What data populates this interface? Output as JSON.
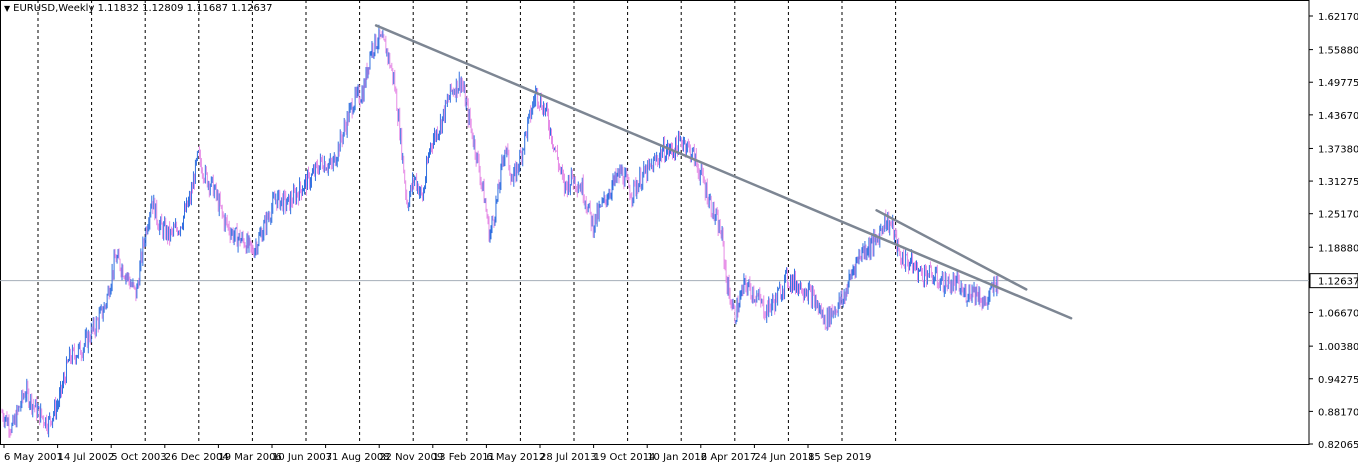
{
  "header": {
    "symbol": "EURUSD,Weekly",
    "ohlc": "1.11832 1.12809 1.11687 1.12637"
  },
  "colors": {
    "background": "#ffffff",
    "up_bar": "#2f6fe0",
    "down_bar": "#e68ce6",
    "trendline": "#7d8693",
    "grid": "#000000",
    "price_line": "#a5aeb8",
    "current_price_badge_bg": "#ffffff"
  },
  "chart_data": {
    "type": "line",
    "title": "",
    "symbol": "EURUSD",
    "timeframe": "Weekly",
    "last_ohlc": {
      "open": 1.11832,
      "high": 1.12809,
      "low": 1.11687,
      "close": 1.12637
    },
    "current_price": 1.12637,
    "current_price_label": "1.12637",
    "ylim": [
      0.821,
      1.627
    ],
    "y_ticks": [
      "1.62170",
      "1.55880",
      "1.49775",
      "1.43670",
      "1.37380",
      "1.31275",
      "1.25170",
      "1.18880",
      "1.12637",
      "1.06670",
      "1.00380",
      "0.94275",
      "0.88170",
      "0.82065"
    ],
    "y_tick_values": [
      1.6217,
      1.5588,
      1.49775,
      1.4367,
      1.3738,
      1.31275,
      1.2517,
      1.1888,
      1.0667,
      1.0038,
      0.94275,
      0.8817,
      0.82065
    ],
    "x_tick_labels": [
      "6 May 2001",
      "14 Jul 2002",
      "5 Oct 2003",
      "26 Dec 2004",
      "19 Mar 2006",
      "10 Jun 2007",
      "31 Aug 2008",
      "22 Nov 2009",
      "13 Feb 2011",
      "6 May 2012",
      "28 Jul 2013",
      "19 Oct 2014",
      "10 Jan 2016",
      "2 Apr 2017",
      "24 Jun 2018",
      "15 Sep 2019"
    ],
    "x_range": [
      2001.0,
      2020.4
    ],
    "series": [
      {
        "values": [
          [
            2001.0,
            0.88
          ],
          [
            2001.2,
            0.85
          ],
          [
            2001.45,
            0.92
          ],
          [
            2001.7,
            0.88
          ],
          [
            2001.9,
            0.86
          ],
          [
            2002.1,
            0.9
          ],
          [
            2002.3,
            0.98
          ],
          [
            2002.55,
            1.0
          ],
          [
            2002.8,
            1.04
          ],
          [
            2003.0,
            1.08
          ],
          [
            2003.2,
            1.17
          ],
          [
            2003.4,
            1.14
          ],
          [
            2003.6,
            1.1
          ],
          [
            2003.75,
            1.2
          ],
          [
            2003.9,
            1.28
          ],
          [
            2004.05,
            1.23
          ],
          [
            2004.25,
            1.21
          ],
          [
            2004.45,
            1.23
          ],
          [
            2004.65,
            1.28
          ],
          [
            2004.8,
            1.36
          ],
          [
            2004.95,
            1.32
          ],
          [
            2005.1,
            1.3
          ],
          [
            2005.3,
            1.24
          ],
          [
            2005.5,
            1.21
          ],
          [
            2005.7,
            1.2
          ],
          [
            2005.85,
            1.18
          ],
          [
            2006.05,
            1.22
          ],
          [
            2006.3,
            1.28
          ],
          [
            2006.55,
            1.27
          ],
          [
            2006.8,
            1.3
          ],
          [
            2007.0,
            1.32
          ],
          [
            2007.2,
            1.35
          ],
          [
            2007.4,
            1.34
          ],
          [
            2007.6,
            1.4
          ],
          [
            2007.8,
            1.46
          ],
          [
            2008.0,
            1.48
          ],
          [
            2008.15,
            1.56
          ],
          [
            2008.3,
            1.58
          ],
          [
            2008.45,
            1.56
          ],
          [
            2008.6,
            1.5
          ],
          [
            2008.72,
            1.4
          ],
          [
            2008.85,
            1.27
          ],
          [
            2009.0,
            1.32
          ],
          [
            2009.15,
            1.28
          ],
          [
            2009.3,
            1.38
          ],
          [
            2009.5,
            1.42
          ],
          [
            2009.7,
            1.48
          ],
          [
            2009.9,
            1.5
          ],
          [
            2010.05,
            1.43
          ],
          [
            2010.2,
            1.36
          ],
          [
            2010.35,
            1.28
          ],
          [
            2010.45,
            1.21
          ],
          [
            2010.6,
            1.28
          ],
          [
            2010.75,
            1.38
          ],
          [
            2010.9,
            1.31
          ],
          [
            2011.05,
            1.36
          ],
          [
            2011.25,
            1.44
          ],
          [
            2011.35,
            1.48
          ],
          [
            2011.55,
            1.44
          ],
          [
            2011.75,
            1.36
          ],
          [
            2011.9,
            1.3
          ],
          [
            2012.05,
            1.32
          ],
          [
            2012.25,
            1.3
          ],
          [
            2012.45,
            1.23
          ],
          [
            2012.6,
            1.26
          ],
          [
            2012.8,
            1.3
          ],
          [
            2013.0,
            1.33
          ],
          [
            2013.2,
            1.29
          ],
          [
            2013.4,
            1.32
          ],
          [
            2013.6,
            1.34
          ],
          [
            2013.8,
            1.37
          ],
          [
            2014.0,
            1.37
          ],
          [
            2014.2,
            1.39
          ],
          [
            2014.4,
            1.36
          ],
          [
            2014.6,
            1.31
          ],
          [
            2014.8,
            1.25
          ],
          [
            2014.95,
            1.21
          ],
          [
            2015.05,
            1.12
          ],
          [
            2015.2,
            1.06
          ],
          [
            2015.4,
            1.12
          ],
          [
            2015.6,
            1.1
          ],
          [
            2015.8,
            1.07
          ],
          [
            2016.0,
            1.09
          ],
          [
            2016.2,
            1.13
          ],
          [
            2016.4,
            1.12
          ],
          [
            2016.6,
            1.11
          ],
          [
            2016.8,
            1.08
          ],
          [
            2016.95,
            1.05
          ],
          [
            2017.1,
            1.07
          ],
          [
            2017.3,
            1.09
          ],
          [
            2017.5,
            1.15
          ],
          [
            2017.65,
            1.18
          ],
          [
            2017.8,
            1.19
          ],
          [
            2017.95,
            1.2
          ],
          [
            2018.1,
            1.24
          ],
          [
            2018.25,
            1.23
          ],
          [
            2018.4,
            1.17
          ],
          [
            2018.6,
            1.16
          ],
          [
            2018.8,
            1.14
          ],
          [
            2018.95,
            1.14
          ],
          [
            2019.1,
            1.13
          ],
          [
            2019.3,
            1.12
          ],
          [
            2019.5,
            1.12
          ],
          [
            2019.65,
            1.1
          ],
          [
            2019.8,
            1.11
          ],
          [
            2019.95,
            1.1
          ],
          [
            2020.05,
            1.08
          ],
          [
            2020.15,
            1.1
          ],
          [
            2020.25,
            1.12
          ],
          [
            2020.3,
            1.126
          ]
        ]
      }
    ],
    "trendlines": [
      {
        "from": [
          2008.25,
          1.604
        ],
        "to": [
          2021.72,
          1.056
        ]
      },
      {
        "from": [
          2017.95,
          1.258
        ],
        "to": [
          2020.85,
          1.11
        ]
      }
    ]
  }
}
